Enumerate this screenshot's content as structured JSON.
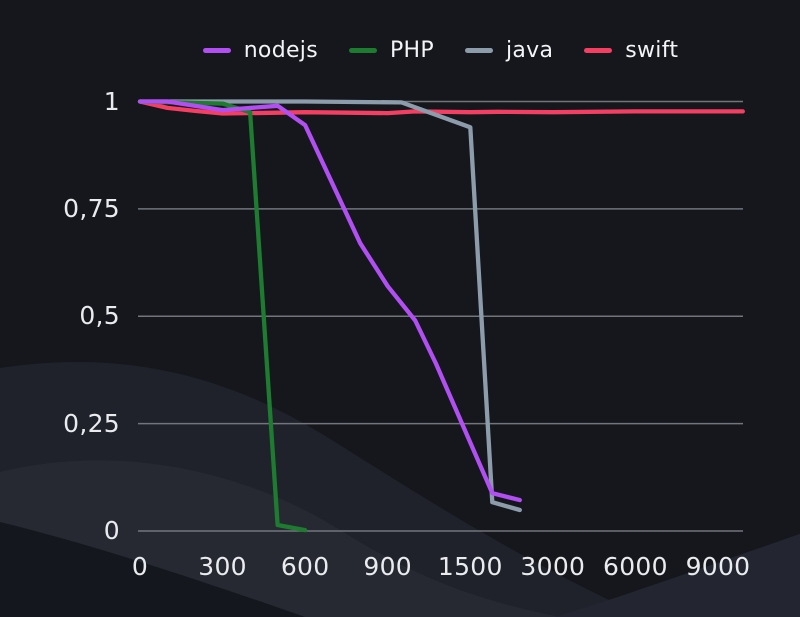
{
  "page": {
    "background_color": "#15171d",
    "text_color": "#e9ebee",
    "gridline_color": "#72757c",
    "wave_colors": [
      "#1f222a",
      "#262932",
      "#232630",
      "#14171d",
      "#1a1d24"
    ]
  },
  "chart_data": {
    "type": "line",
    "title": "",
    "xlabel": "",
    "ylabel": "",
    "ylim": [
      0,
      1
    ],
    "grid": "horizontal",
    "legend_position": "top",
    "decimal_separator": ",",
    "xticks": [
      {
        "value": 0,
        "label": "0"
      },
      {
        "value": 300,
        "label": "300"
      },
      {
        "value": 600,
        "label": "600"
      },
      {
        "value": 900,
        "label": "900"
      },
      {
        "value": 1500,
        "label": "1500"
      },
      {
        "value": 3000,
        "label": "3000"
      },
      {
        "value": 6000,
        "label": "6000"
      },
      {
        "value": 9000,
        "label": "9000"
      }
    ],
    "yticks": [
      {
        "value": 0,
        "label": "0"
      },
      {
        "value": 0.25,
        "label": "0,25"
      },
      {
        "value": 0.5,
        "label": "0,5"
      },
      {
        "value": 0.75,
        "label": "0,75"
      },
      {
        "value": 1,
        "label": "1"
      }
    ],
    "series": [
      {
        "name": "nodejs",
        "color": "#b14ff2",
        "points": [
          [
            0,
            1
          ],
          [
            100,
            1
          ],
          [
            300,
            0.98
          ],
          [
            500,
            0.99
          ],
          [
            600,
            0.945
          ],
          [
            800,
            0.67
          ],
          [
            900,
            0.57
          ],
          [
            1100,
            0.49
          ],
          [
            1250,
            0.39
          ],
          [
            1900,
            0.088
          ],
          [
            2400,
            0.072
          ]
        ]
      },
      {
        "name": "PHP",
        "color": "#1d7c2f",
        "points": [
          [
            0,
            1
          ],
          [
            300,
            0.995
          ],
          [
            400,
            0.975
          ],
          [
            500,
            0.014
          ],
          [
            600,
            0.002
          ]
        ]
      },
      {
        "name": "java",
        "color": "#8d9cab",
        "points": [
          [
            0,
            1
          ],
          [
            600,
            1
          ],
          [
            1000,
            0.998
          ],
          [
            1500,
            0.94
          ],
          [
            1900,
            0.067
          ],
          [
            2400,
            0.049
          ]
        ]
      },
      {
        "name": "swift",
        "color": "#f43f63",
        "points": [
          [
            0,
            1
          ],
          [
            100,
            0.985
          ],
          [
            200,
            0.978
          ],
          [
            300,
            0.972
          ],
          [
            500,
            0.974
          ],
          [
            600,
            0.975
          ],
          [
            900,
            0.973
          ],
          [
            1100,
            0.977
          ],
          [
            1500,
            0.975
          ],
          [
            2000,
            0.976
          ],
          [
            3000,
            0.975
          ],
          [
            6000,
            0.977
          ],
          [
            9000,
            0.977
          ],
          [
            9900,
            0.977
          ]
        ]
      }
    ]
  }
}
